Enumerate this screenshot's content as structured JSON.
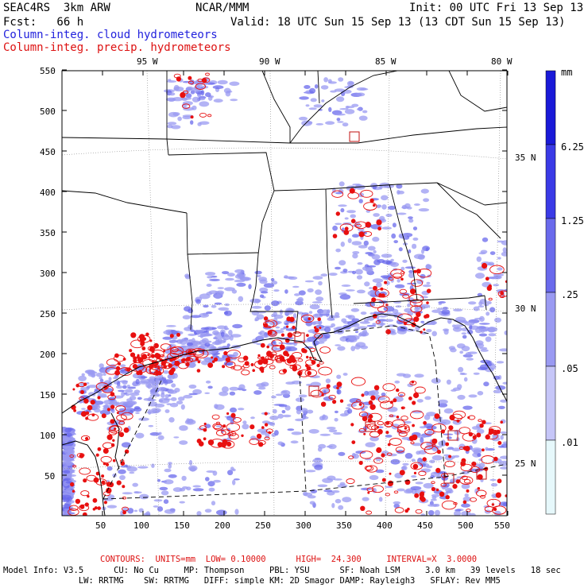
{
  "header": {
    "model": "SEAC4RS  3km ARW",
    "center": "NCAR/MMM",
    "init": "Init: 00 UTC Fri 13 Sep 13",
    "fcst": "Fcst:   66 h",
    "valid": "Valid: 18 UTC Sun 15 Sep 13 (13 CDT Sun 15 Sep 13)",
    "field1": "Column-integ. cloud hydrometeors",
    "field2": "Column-integ. precip. hydrometeors"
  },
  "axes": {
    "lon_labels": [
      "95 W",
      "90 W",
      "85 W",
      "80 W"
    ],
    "lat_labels": [
      "35 N",
      "30 N",
      "25 N"
    ],
    "x_ticks": [
      "50",
      "100",
      "150",
      "200",
      "250",
      "300",
      "350",
      "400",
      "450",
      "500",
      "550"
    ],
    "y_ticks": [
      "550",
      "500",
      "450",
      "400",
      "350",
      "300",
      "250",
      "200",
      "150",
      "100",
      "50"
    ]
  },
  "colorbar": {
    "unit": "mm",
    "labels": [
      "6.25",
      "1.25",
      ".25",
      ".05",
      ".01"
    ],
    "colors": [
      "#1a1ad8",
      "#3a3ae6",
      "#6a6aec",
      "#9a9af2",
      "#c6c6f8",
      "#e6f8fb"
    ]
  },
  "colors": {
    "cloud": "#9a9af2",
    "cloud_dark": "#6a6aec",
    "precip": "#e81010",
    "coast": "#000000"
  },
  "footer": {
    "contours": "CONTOURS:  UNITS=mm  LOW= 0.10000      HIGH=  24.300     INTERVAL=X  3.0000",
    "line1": "Model Info: V3.5      CU: No Cu     MP: Thompson     PBL: YSU      SF: Noah LSM     3.0 km   39 levels   18 sec",
    "line2": "               LW: RRTMG    SW: RRTMG   DIFF: simple KM: 2D Smagor DAMP: Rayleigh3   SFLAY: Rev MM5"
  }
}
